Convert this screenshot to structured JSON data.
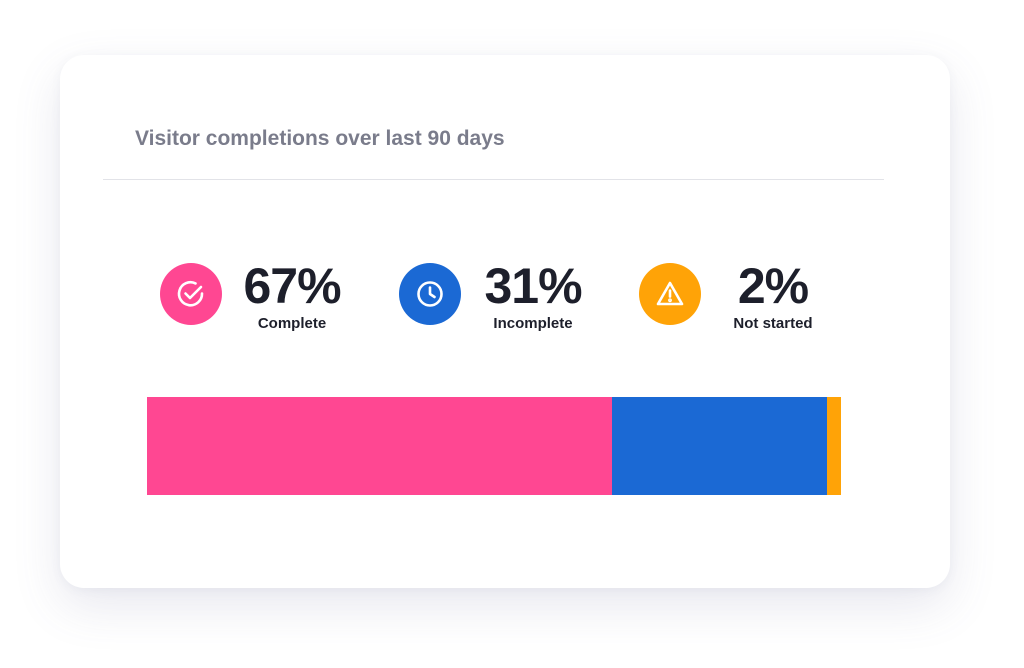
{
  "card": {
    "title": "Visitor completions over last 90 days"
  },
  "stats": [
    {
      "value": "67%",
      "label": "Complete",
      "icon": "check-circle-icon",
      "color": "#ff4792"
    },
    {
      "value": "31%",
      "label": "Incomplete",
      "icon": "clock-icon",
      "color": "#1b69d4"
    },
    {
      "value": "2%",
      "label": "Not started",
      "icon": "warning-triangle-icon",
      "color": "#ffa307"
    }
  ],
  "chart_data": {
    "type": "bar",
    "orientation": "horizontal-stacked",
    "title": "Visitor completions over last 90 days",
    "categories": [
      "Complete",
      "Incomplete",
      "Not started"
    ],
    "values": [
      67,
      31,
      2
    ],
    "unit": "%",
    "colors": [
      "#ff4792",
      "#1b69d4",
      "#ffa307"
    ],
    "grid": false,
    "legend": "top"
  }
}
